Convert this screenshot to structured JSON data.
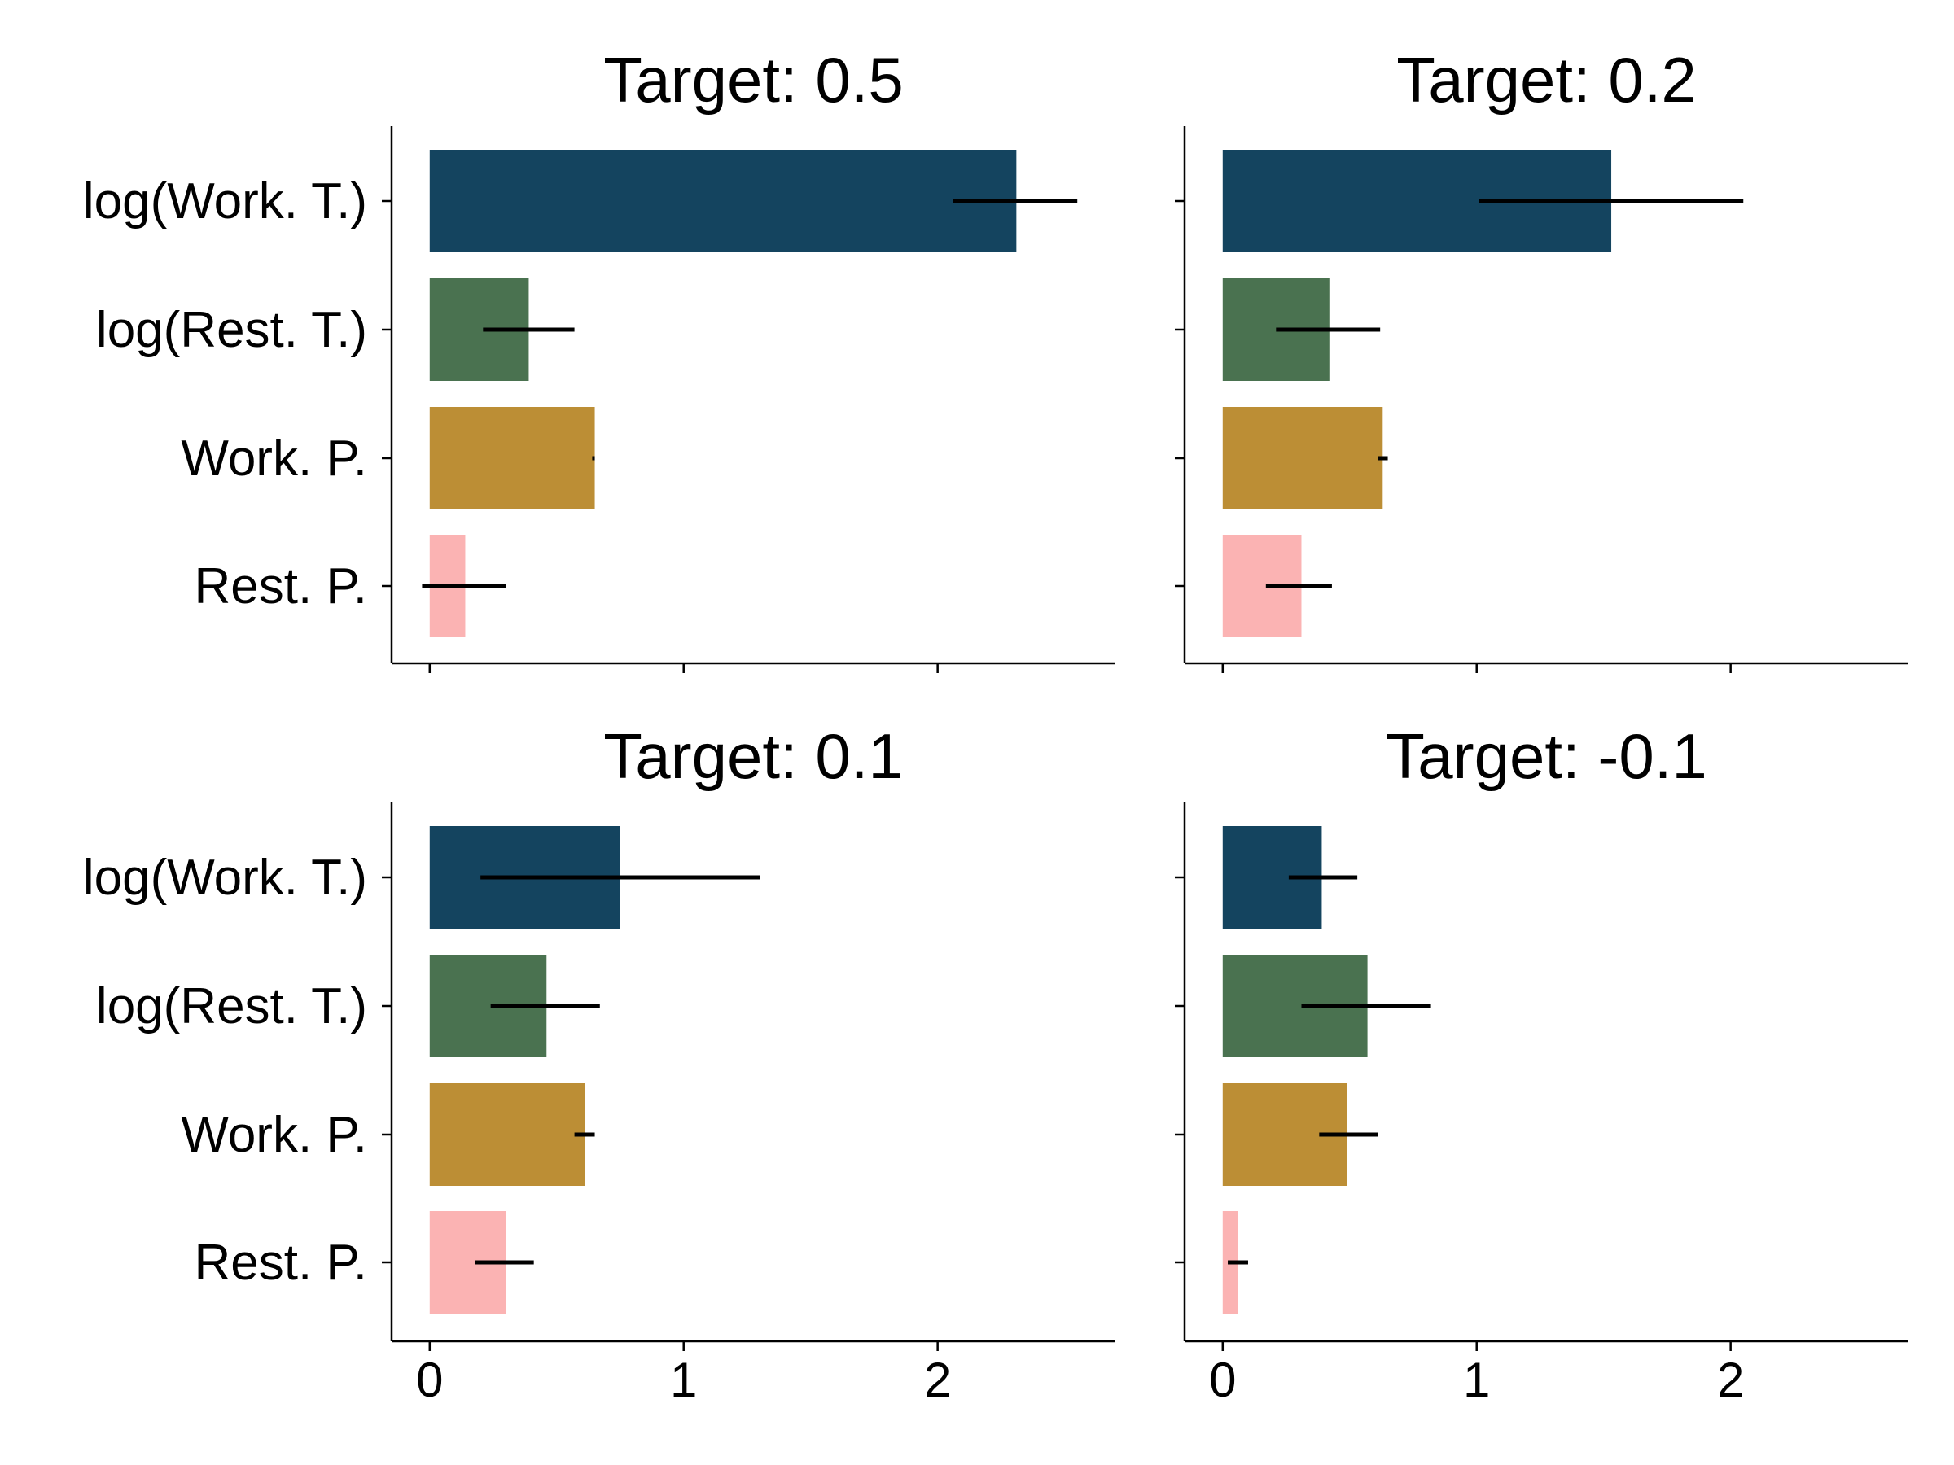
{
  "chart_data": {
    "type": "bar",
    "orientation": "horizontal",
    "categories": [
      "log(Work. T.)",
      "log(Rest. T.)",
      "Work. P.",
      "Rest. P."
    ],
    "colors": [
      "#14445f",
      "#4a7250",
      "#bc8e35",
      "#fbb3b3"
    ],
    "xlim": [
      -0.15,
      2.7
    ],
    "xticks": [
      "0",
      "1",
      "2"
    ],
    "grid": false,
    "panels": [
      {
        "title": "Target: 0.5",
        "values": [
          2.31,
          0.39,
          0.65,
          0.14
        ],
        "errors": [
          [
            2.06,
            2.55
          ],
          [
            0.21,
            0.57
          ],
          [
            0.64,
            0.65
          ],
          [
            -0.03,
            0.3
          ]
        ]
      },
      {
        "title": "Target: 0.2",
        "values": [
          1.53,
          0.42,
          0.63,
          0.31
        ],
        "errors": [
          [
            1.01,
            2.05
          ],
          [
            0.21,
            0.62
          ],
          [
            0.61,
            0.65
          ],
          [
            0.17,
            0.43
          ]
        ]
      },
      {
        "title": "Target: 0.1",
        "values": [
          0.75,
          0.46,
          0.61,
          0.3
        ],
        "errors": [
          [
            0.2,
            1.3
          ],
          [
            0.24,
            0.67
          ],
          [
            0.57,
            0.65
          ],
          [
            0.18,
            0.41
          ]
        ]
      },
      {
        "title": "Target: -0.1",
        "values": [
          0.39,
          0.57,
          0.49,
          0.06
        ],
        "errors": [
          [
            0.26,
            0.53
          ],
          [
            0.31,
            0.82
          ],
          [
            0.38,
            0.61
          ],
          [
            0.02,
            0.1
          ]
        ]
      }
    ]
  }
}
